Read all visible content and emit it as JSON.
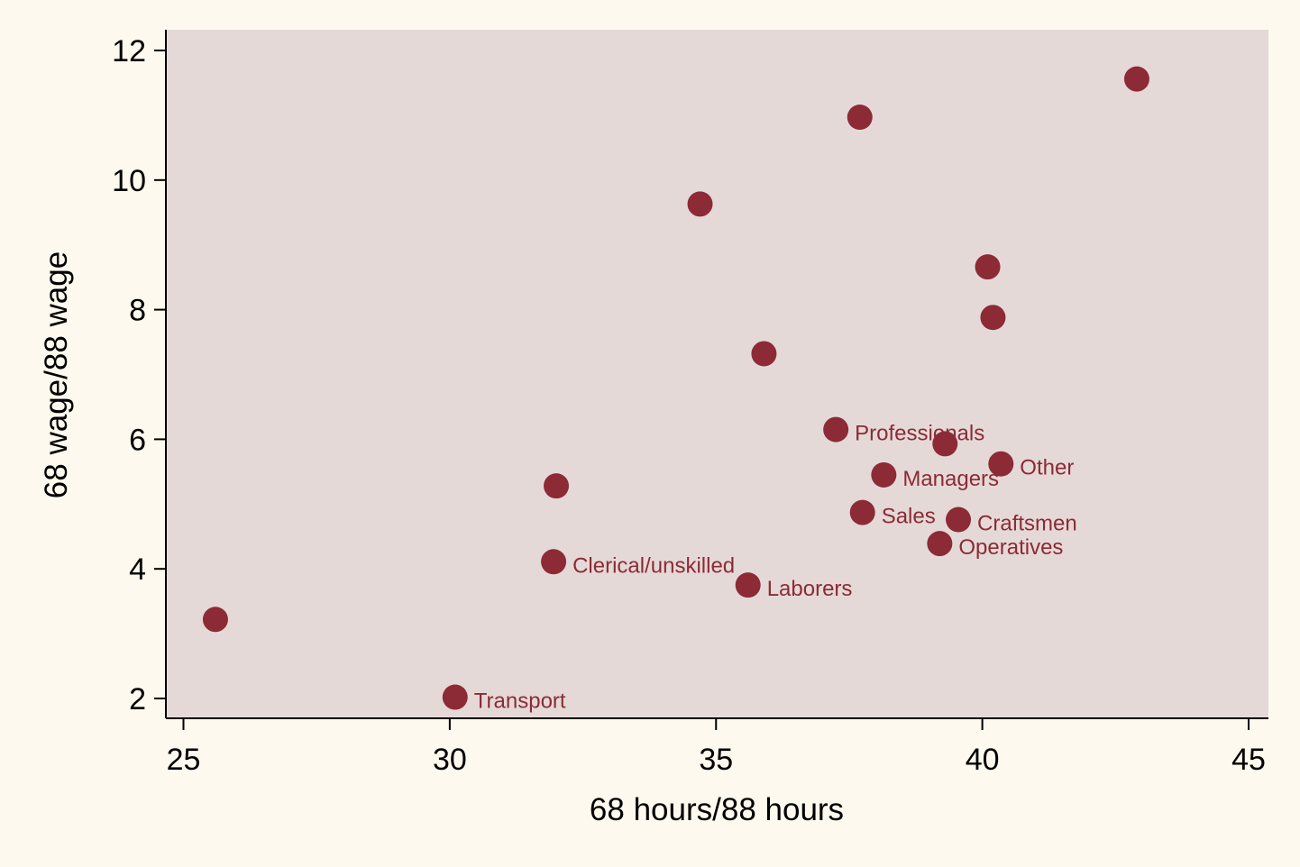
{
  "chart_data": {
    "type": "scatter",
    "title": "",
    "xlabel": "68 hours/88 hours",
    "ylabel": "68 wage/88 wage",
    "xlim": [
      24.7,
      45.4
    ],
    "ylim": [
      1.7,
      12.4
    ],
    "xticks": [
      25,
      30,
      35,
      40,
      45
    ],
    "yticks": [
      2,
      4,
      6,
      8,
      10,
      12
    ],
    "xtick_labels": [
      "25",
      "30",
      "35",
      "40",
      "45"
    ],
    "ytick_labels": [
      "2",
      "4",
      "6",
      "8",
      "10",
      "12"
    ],
    "grid": false,
    "legend": "none",
    "colors": {
      "page_background": "#fdf9ee",
      "plot_background": "#e5d9d8",
      "marker": "#8c2b35",
      "label": "#8c2b35",
      "axis": "#000000"
    },
    "points": [
      {
        "x": 25.6,
        "y": 3.22,
        "label": ""
      },
      {
        "x": 30.1,
        "y": 2.02,
        "label": "Transport"
      },
      {
        "x": 32.0,
        "y": 5.28,
        "label": ""
      },
      {
        "x": 31.95,
        "y": 4.11,
        "label": "Clerical/unskilled"
      },
      {
        "x": 34.7,
        "y": 9.63,
        "label": ""
      },
      {
        "x": 35.9,
        "y": 7.32,
        "label": ""
      },
      {
        "x": 35.6,
        "y": 3.75,
        "label": "Laborers"
      },
      {
        "x": 37.7,
        "y": 10.97,
        "label": ""
      },
      {
        "x": 37.25,
        "y": 6.15,
        "label": "Professionals"
      },
      {
        "x": 38.15,
        "y": 5.45,
        "label": "Managers"
      },
      {
        "x": 37.75,
        "y": 4.87,
        "label": "Sales"
      },
      {
        "x": 39.3,
        "y": 5.93,
        "label": ""
      },
      {
        "x": 39.2,
        "y": 4.39,
        "label": "Operatives"
      },
      {
        "x": 39.55,
        "y": 4.76,
        "label": "Craftsmen"
      },
      {
        "x": 40.1,
        "y": 8.66,
        "label": ""
      },
      {
        "x": 40.2,
        "y": 7.88,
        "label": ""
      },
      {
        "x": 40.35,
        "y": 5.62,
        "label": "Other"
      },
      {
        "x": 42.9,
        "y": 11.56,
        "label": ""
      }
    ]
  }
}
